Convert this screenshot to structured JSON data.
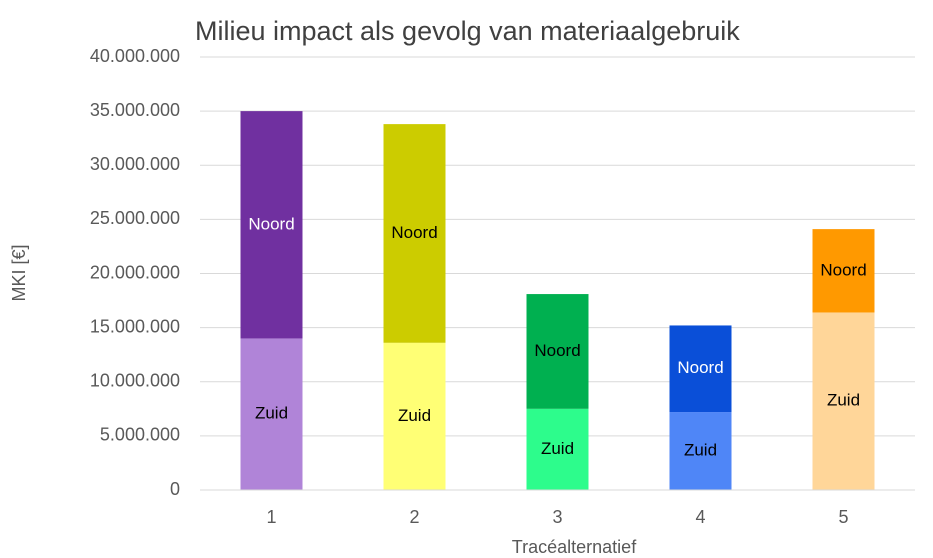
{
  "chart_data": {
    "type": "stacked_bar",
    "title": "Milieu impact als gevolg van materiaalgebruik",
    "x_label": "Tracéalternatief",
    "y_label": "MKI [€]",
    "categories": [
      "1",
      "2",
      "3",
      "4",
      "5"
    ],
    "series": [
      {
        "name": "Zuid",
        "colors": [
          "#b084d8",
          "#ffff75",
          "#2dfc8c",
          "#4f86f7",
          "#ffd699"
        ],
        "label_colors": [
          "#000000",
          "#000000",
          "#000000",
          "#000000",
          "#000000"
        ],
        "values": [
          14000000,
          13600000,
          7500000,
          7200000,
          16400000
        ]
      },
      {
        "name": "Noord",
        "colors": [
          "#7030a0",
          "#cccc00",
          "#00b050",
          "#0a4fd8",
          "#ff9900"
        ],
        "label_colors": [
          "#ffffff",
          "#000000",
          "#000000",
          "#ffffff",
          "#000000"
        ],
        "values": [
          21000000,
          20200000,
          10600000,
          8000000,
          7700000
        ]
      }
    ],
    "ylim": [
      0,
      40000000
    ],
    "yticks": [
      0,
      {
        "value": 5000000,
        "label": "5.000.000"
      },
      {
        "value": 10000000,
        "label": "10.000.000"
      },
      {
        "value": 15000000,
        "label": "15.000.000"
      },
      {
        "value": 20000000,
        "label": "20.000.000"
      },
      {
        "value": 25000000,
        "label": "25.000.000"
      },
      {
        "value": 30000000,
        "label": "30.000.000"
      },
      {
        "value": 35000000,
        "label": "35.000.000"
      },
      {
        "value": 40000000,
        "label": "40.000.000"
      }
    ],
    "grid": true
  }
}
